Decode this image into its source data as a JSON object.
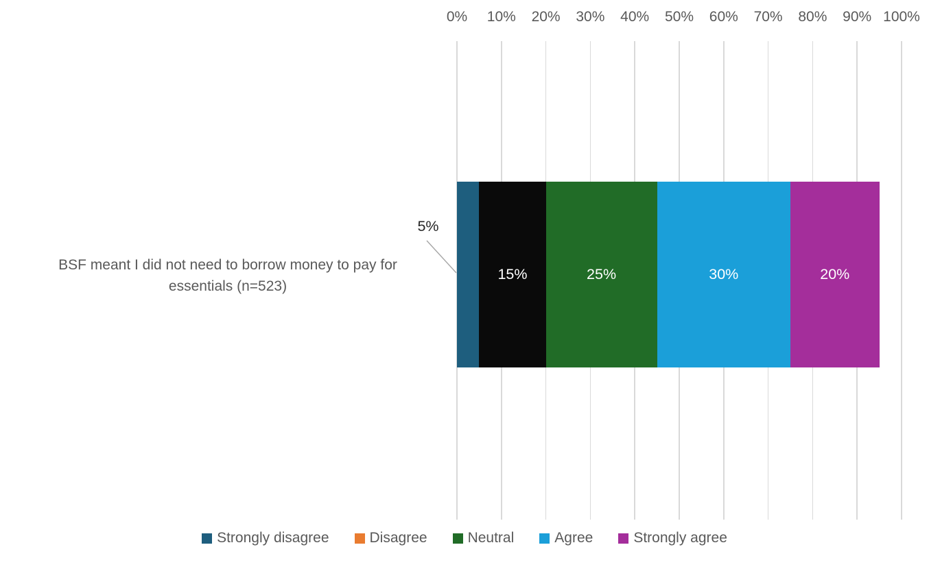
{
  "chart_data": {
    "type": "bar",
    "orientation": "horizontal",
    "stacked": true,
    "title": "",
    "categories": [
      "BSF meant I did not need to borrow money to pay for essentials (n=523)"
    ],
    "category_label_lines": [
      "BSF meant I did not need to borrow money to pay for",
      "essentials (n=523)"
    ],
    "series": [
      {
        "name": "Strongly disagree",
        "values": [
          5
        ],
        "label": "5%",
        "bar_color": "#1E5E7E",
        "legend_color": "#1E5E7E",
        "label_placement": "callout-outside",
        "label_color": "#262626"
      },
      {
        "name": "Disagree",
        "values": [
          15
        ],
        "label": "15%",
        "bar_color": "#0A0A0A",
        "legend_color": "#E97C30",
        "label_placement": "inside",
        "label_color": "#FFFFFF"
      },
      {
        "name": "Neutral",
        "values": [
          25
        ],
        "label": "25%",
        "bar_color": "#216C27",
        "legend_color": "#216C27",
        "label_placement": "inside",
        "label_color": "#FFFFFF"
      },
      {
        "name": "Agree",
        "values": [
          30
        ],
        "label": "30%",
        "bar_color": "#1B9FD9",
        "legend_color": "#1B9FD9",
        "label_placement": "inside",
        "label_color": "#FFFFFF"
      },
      {
        "name": "Strongly agree",
        "values": [
          20
        ],
        "label": "20%",
        "bar_color": "#A42E9B",
        "legend_color": "#A42E9B",
        "label_placement": "inside",
        "label_color": "#FFFFFF"
      }
    ],
    "x_axis": {
      "position": "top",
      "min": 0,
      "max": 100,
      "tick_interval": 10,
      "ticks": [
        "0%",
        "10%",
        "20%",
        "30%",
        "40%",
        "50%",
        "60%",
        "70%",
        "80%",
        "90%",
        "100%"
      ],
      "grid": true,
      "gridline_color": "#D9D9D9",
      "tick_color": "#595959"
    },
    "legend": {
      "position": "bottom",
      "text_color": "#595959"
    },
    "callout": {
      "text": "5%",
      "for_series": "Strongly disagree",
      "line_color": "#A6A6A6"
    },
    "background_color": "#FFFFFF"
  }
}
